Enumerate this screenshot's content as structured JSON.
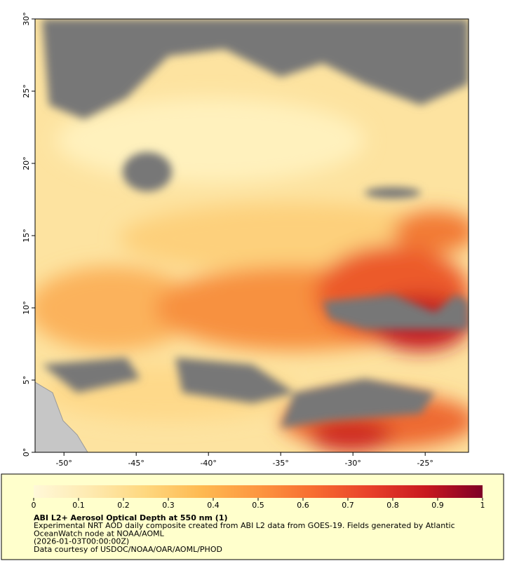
{
  "map": {
    "xlim": [
      -52,
      -22
    ],
    "ylim": [
      0,
      30
    ],
    "xticks": [
      {
        "value": -50,
        "label": "-50°"
      },
      {
        "value": -45,
        "label": "-45°"
      },
      {
        "value": -40,
        "label": "-40°"
      },
      {
        "value": -35,
        "label": "-35°"
      },
      {
        "value": -30,
        "label": "-30°"
      },
      {
        "value": -25,
        "label": "-25°"
      }
    ],
    "yticks": [
      {
        "value": 0,
        "label": "0°"
      },
      {
        "value": 5,
        "label": "5°"
      },
      {
        "value": 10,
        "label": "10°"
      },
      {
        "value": 15,
        "label": "15°"
      },
      {
        "value": 20,
        "label": "20°"
      },
      {
        "value": 25,
        "label": "25°"
      },
      {
        "value": 30,
        "label": "30°"
      }
    ]
  },
  "colorbar": {
    "lim": [
      0,
      1
    ],
    "ticks": [
      0,
      0.1,
      0.2,
      0.3,
      0.4,
      0.5,
      0.6,
      0.7,
      0.8,
      0.9,
      1
    ],
    "colors": [
      "#fff8d8",
      "#feeab0",
      "#fed77e",
      "#feb951",
      "#fd9640",
      "#f76c30",
      "#e8402a",
      "#c8181f",
      "#7f0026"
    ]
  },
  "caption": {
    "title": "ABI L2+ Aerosol Optical Depth at 550 nm (1)",
    "lines": [
      "Experimental NRT AOD daily composite created from ABI L2 data from GOES-19. Fields generated by Atlantic",
      "OceanWatch node at NOAA/AOML",
      "(2026-01-03T00:00:00Z)",
      "Data courtesy of USDOC/NOAA/OAR/AOML/PHOD"
    ]
  }
}
